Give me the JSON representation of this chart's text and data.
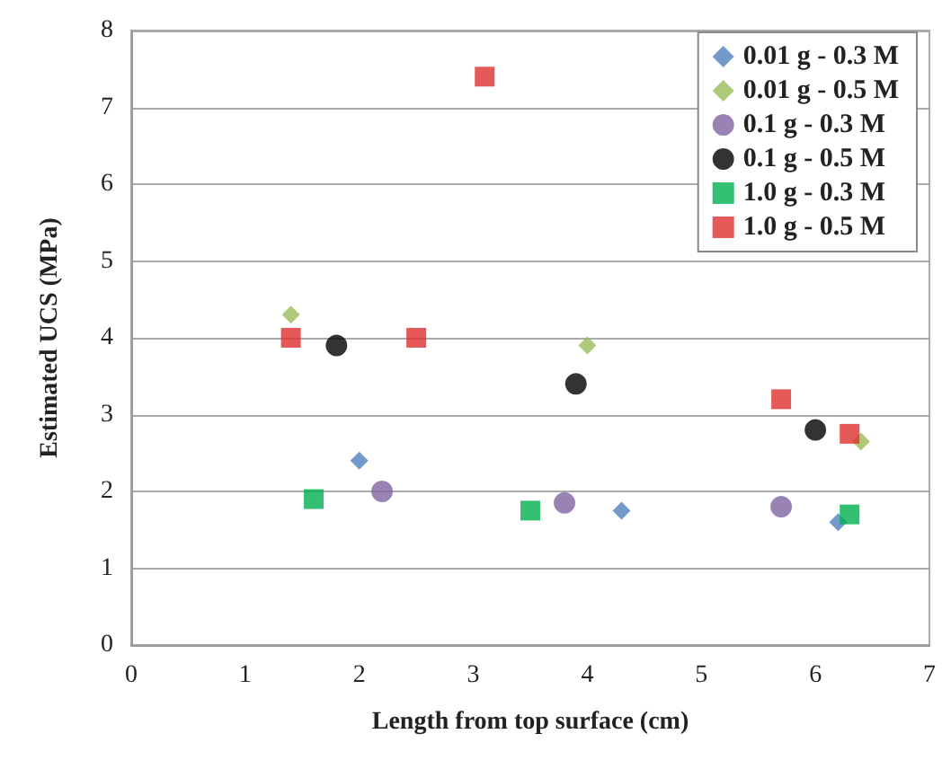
{
  "chart_data": {
    "type": "scatter",
    "xlabel": "Length from top surface (cm)",
    "ylabel": "Estimated UCS (MPa)",
    "xlim": [
      0,
      7
    ],
    "xticks": [
      0,
      1,
      2,
      3,
      4,
      5,
      6,
      7
    ],
    "ylim": [
      0,
      8
    ],
    "yticks": [
      0,
      1,
      2,
      3,
      4,
      5,
      6,
      7,
      8
    ],
    "grid": "y",
    "legend": "top right",
    "series": [
      {
        "name": "0.01 g - 0.3 M",
        "color": "#4f81bd",
        "marker": "diamond",
        "x": [
          2.0,
          4.3,
          6.2
        ],
        "values": [
          2.4,
          1.75,
          1.6
        ]
      },
      {
        "name": "0.01 g - 0.5 M",
        "color": "#9bbb59",
        "marker": "diamond",
        "x": [
          1.4,
          4.0,
          6.4
        ],
        "values": [
          4.3,
          3.9,
          2.65
        ]
      },
      {
        "name": "0.1 g - 0.3 M",
        "color": "#8064a2",
        "marker": "circle",
        "x": [
          2.2,
          3.8,
          5.7
        ],
        "values": [
          2.0,
          1.85,
          1.8
        ]
      },
      {
        "name": "0.1 g - 0.5 M",
        "color": "#000000",
        "marker": "circle",
        "x": [
          1.8,
          3.9,
          6.0
        ],
        "values": [
          3.9,
          3.4,
          2.8
        ]
      },
      {
        "name": "1.0 g - 0.3 M",
        "color": "#00b050",
        "marker": "square",
        "x": [
          1.6,
          3.5,
          6.3
        ],
        "values": [
          1.9,
          1.75,
          1.7
        ]
      },
      {
        "name": "1.0 g - 0.5 M",
        "color": "#e03030",
        "marker": "square",
        "x": [
          1.4,
          2.5,
          3.1,
          5.7,
          6.3
        ],
        "values": [
          4.0,
          4.0,
          7.4,
          3.2,
          2.75
        ]
      }
    ]
  }
}
